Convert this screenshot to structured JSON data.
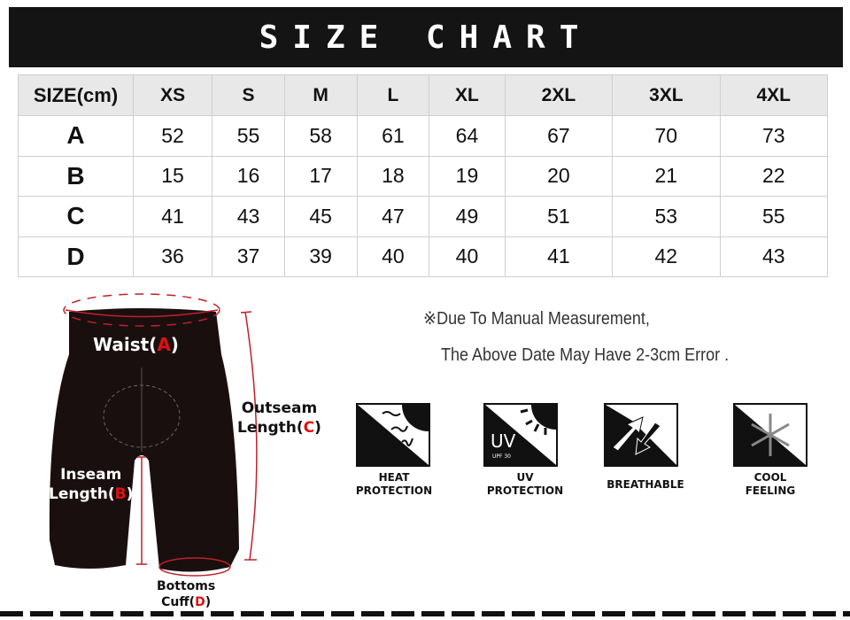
{
  "title": "SIZE CHART",
  "table": {
    "header": [
      "SIZE(cm)",
      "XS",
      "S",
      "M",
      "L",
      "XL",
      "2XL",
      "3XL",
      "4XL"
    ],
    "rows": [
      {
        "label": "A",
        "values": [
          "52",
          "55",
          "58",
          "61",
          "64",
          "67",
          "70",
          "73"
        ]
      },
      {
        "label": "B",
        "values": [
          "15",
          "16",
          "17",
          "18",
          "19",
          "20",
          "21",
          "22"
        ]
      },
      {
        "label": "C",
        "values": [
          "41",
          "43",
          "45",
          "47",
          "49",
          "51",
          "53",
          "55"
        ]
      },
      {
        "label": "D",
        "values": [
          "36",
          "37",
          "39",
          "40",
          "40",
          "41",
          "42",
          "43"
        ]
      }
    ]
  },
  "notes": {
    "line1": "※Due To Manual Measurement,",
    "line2": "The Above Date May Have 2-3cm Error ."
  },
  "diagram": {
    "waist": "Waist(",
    "waist_key": "A",
    "outseam": "Outseam",
    "outseam2": "Length(",
    "outseam_key": "C",
    "inseam": "Inseam",
    "inseam2": "Length(",
    "inseam_key": "B",
    "cuff": "Bottoms",
    "cuff2": "Cuff(",
    "cuff_key": "D",
    "close": ")"
  },
  "features": [
    {
      "icon": "heat-icon",
      "l1": "HEAT",
      "l2": "PROTECTION"
    },
    {
      "icon": "uv-icon",
      "l1": "UV",
      "l2": "PROTECTION",
      "badge": "UV",
      "badge_sub": "UPF 30"
    },
    {
      "icon": "breathable-icon",
      "l1": "BREATHABLE",
      "l2": ""
    },
    {
      "icon": "snowflake-icon",
      "l1": "COOL",
      "l2": "FEELING"
    }
  ],
  "colors": {
    "accent": "#e01010",
    "measure": "#c0202a",
    "banner": "#141414"
  }
}
